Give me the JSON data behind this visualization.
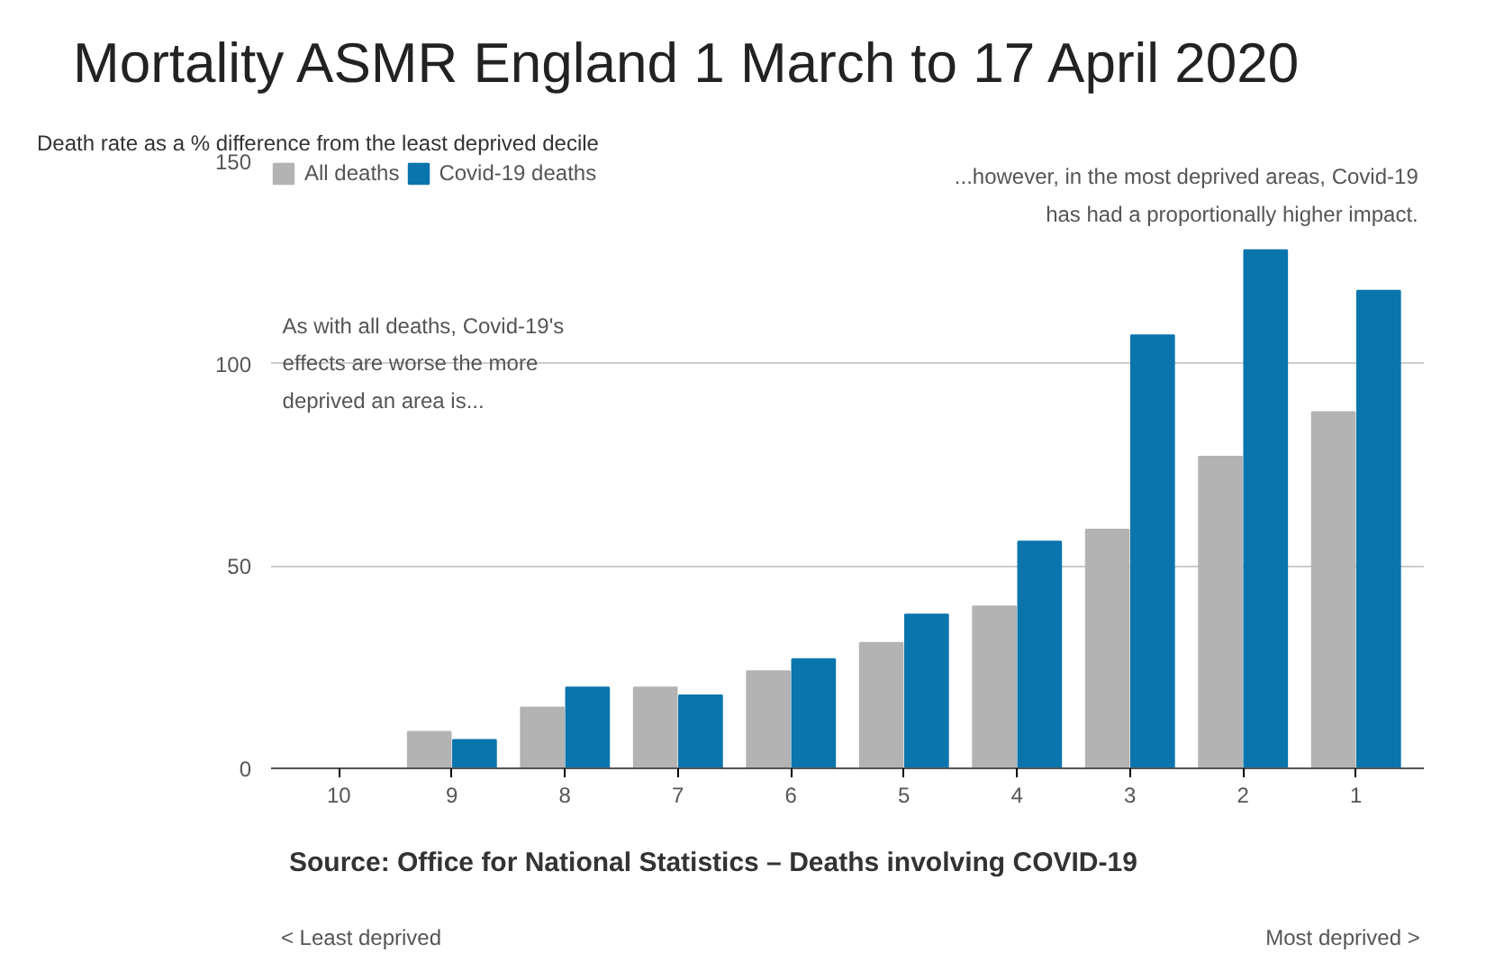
{
  "chart_data": {
    "type": "bar",
    "title": "Mortality ASMR England 1 March to 17 April 2020",
    "subtitle": "Death rate as a % difference from the least deprived decile",
    "categories": [
      "10",
      "9",
      "8",
      "7",
      "6",
      "5",
      "4",
      "3",
      "2",
      "1"
    ],
    "series": [
      {
        "name": "All deaths",
        "color": "#b3b3b3",
        "values": [
          0,
          9,
          15,
          20,
          24,
          31,
          40,
          59,
          77,
          88
        ]
      },
      {
        "name": "Covid-19 deaths",
        "color": "#0a75ad",
        "values": [
          0,
          7,
          20,
          18,
          27,
          38,
          56,
          107,
          128,
          118
        ]
      }
    ],
    "ylim": [
      0,
      150
    ],
    "yticks": [
      0,
      50,
      100,
      150
    ],
    "grid": "y",
    "legend": "top left",
    "annotations": [
      "As with all deaths, Covid-19's\neffects are worse the more\ndeprived an area is...",
      "...however, in the most deprived areas, Covid-19\nhas had a proportionally higher impact.",
      "< Least deprived",
      "Most deprived >",
      "Source: Office for National Statistics – Deaths involving COVID-19"
    ]
  }
}
